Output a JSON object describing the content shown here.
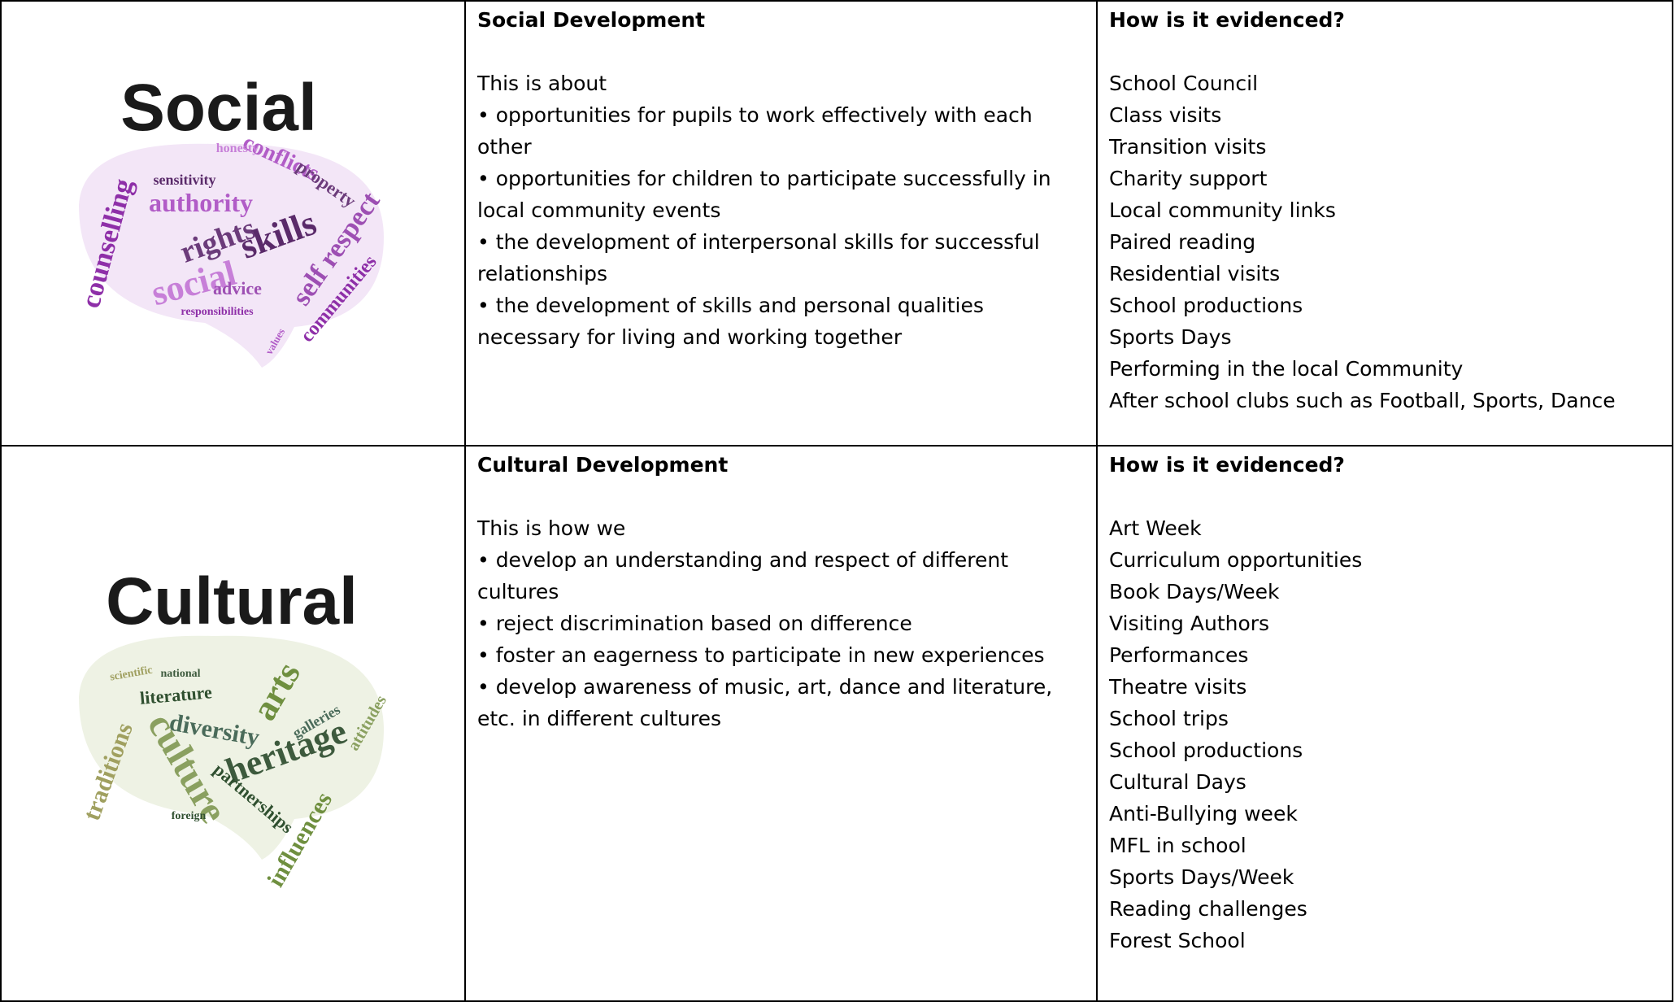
{
  "rows": [
    {
      "image": {
        "title": "Social",
        "words": [
          "counselling",
          "authority",
          "rights",
          "social",
          "skills",
          "self respect",
          "communities",
          "conflicts",
          "property",
          "honesty",
          "sensitivity",
          "advice",
          "responsibilities",
          "values"
        ]
      },
      "heading": "Social Development",
      "intro": "This is about",
      "bullets": [
        "• opportunities for pupils to work effectively with each other",
        "• opportunities for children to participate successfully in local community events",
        "• the development of  interpersonal skills for successful relationships",
        "• the development of skills and personal qualities necessary for living and working together"
      ],
      "evidence_heading": "How is it evidenced?",
      "evidence": [
        "School Council",
        "Class visits",
        "Transition visits",
        "Charity support",
        "Local community links",
        "Paired reading",
        "Residential visits",
        "School productions",
        "Sports Days",
        "Performing in the local Community",
        "After school clubs such as Football, Sports, Dance"
      ]
    },
    {
      "image": {
        "title": "Cultural",
        "words": [
          "literature",
          "arts",
          "diversity",
          "culture",
          "heritage",
          "traditions",
          "partnerships",
          "influences",
          "galleries",
          "attitudes",
          "national",
          "scientific",
          "foreign"
        ]
      },
      "heading": "Cultural Development",
      "intro": "This is how we",
      "bullets": [
        "• develop an understanding and respect of different cultures",
        "• reject discrimination based on difference",
        "• foster an eagerness to participate in new experiences",
        "• develop awareness of music, art, dance and literature, etc. in different cultures"
      ],
      "evidence_heading": "How is it evidenced?",
      "evidence": [
        "Art Week",
        "Curriculum opportunities",
        "Book Days/Week",
        "Visiting Authors",
        "Performances",
        "Theatre visits",
        "School trips",
        "School productions",
        "Cultural Days",
        "Anti-Bullying week",
        "MFL in school",
        "Sports Days/Week",
        "Reading challenges",
        "Forest School"
      ]
    }
  ]
}
